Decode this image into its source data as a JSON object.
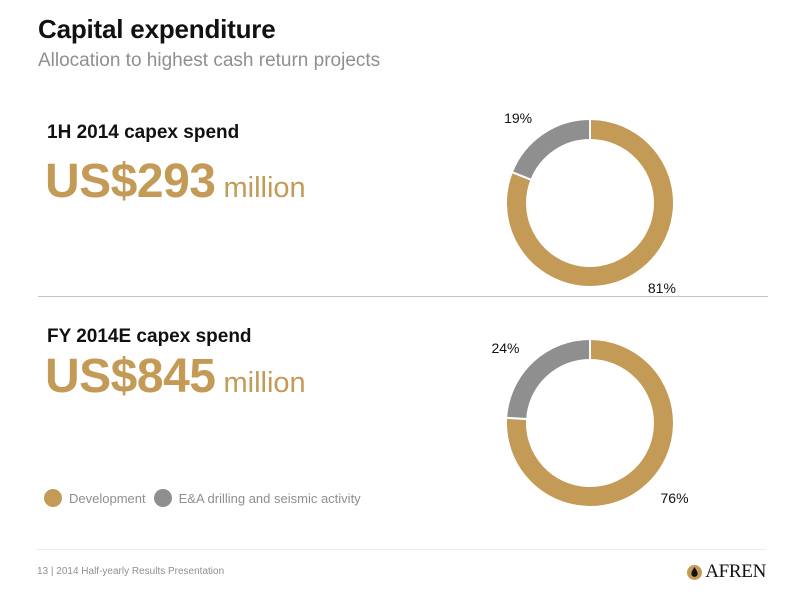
{
  "header": {
    "title": "Capital expenditure",
    "subtitle": "Allocation to highest cash return projects"
  },
  "colors": {
    "development": "#c39b57",
    "exploration": "#8f8f8f",
    "amount_text": "#c39b57"
  },
  "sections": [
    {
      "label": "1H 2014 capex spend",
      "amount": "US$293",
      "unit": "million"
    },
    {
      "label": "FY 2014E capex spend",
      "amount": "US$845",
      "unit": "million"
    }
  ],
  "legend": {
    "items": [
      {
        "label": "Development",
        "color": "#c39b57"
      },
      {
        "label": "E&A drilling and seismic activity",
        "color": "#8f8f8f"
      }
    ]
  },
  "footer": {
    "page": "13",
    "text": "| 2014 Half-yearly Results Presentation",
    "logo_text": "AFREN"
  },
  "chart_data": [
    {
      "type": "pie",
      "donut": true,
      "categories": [
        "Development",
        "E&A drilling and seismic activity"
      ],
      "values": [
        81,
        19
      ],
      "labels": [
        "81%",
        "19%"
      ]
    },
    {
      "type": "pie",
      "donut": true,
      "categories": [
        "Development",
        "E&A drilling and seismic activity"
      ],
      "values": [
        76,
        24
      ],
      "labels": [
        "76%",
        "24%"
      ]
    }
  ]
}
